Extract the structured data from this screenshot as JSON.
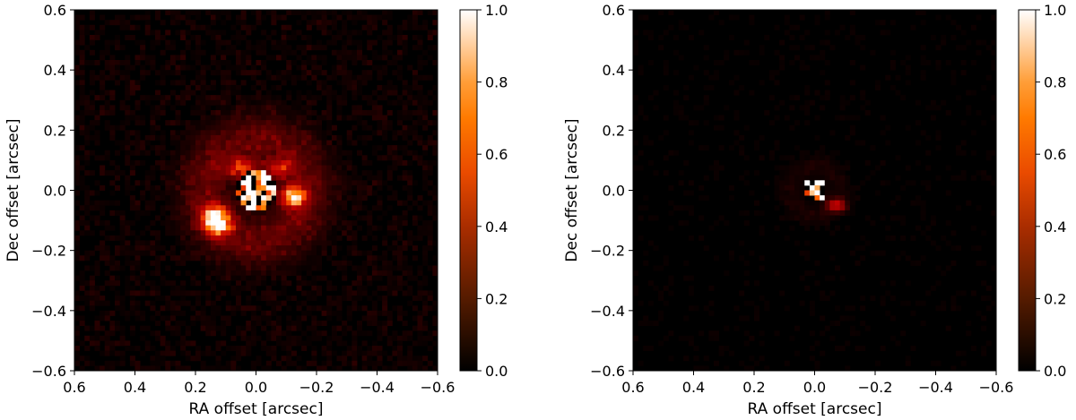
{
  "chart_data": [
    {
      "type": "heatmap",
      "title": "",
      "xlabel": "RA offset [arcsec]",
      "ylabel": "Dec offset [arcsec]",
      "xlim": [
        0.6,
        -0.6
      ],
      "ylim": [
        -0.6,
        0.6
      ],
      "x_inverted": true,
      "xticks": [
        "0.6",
        "0.4",
        "0.2",
        "0.0",
        "−0.2",
        "−0.4",
        "−0.6"
      ],
      "yticks": [
        "−0.6",
        "−0.4",
        "−0.2",
        "0.0",
        "0.2",
        "0.4",
        "0.6"
      ],
      "colorbar": {
        "range": [
          0.0,
          1.0
        ],
        "ticks": [
          "0.0",
          "0.2",
          "0.4",
          "0.6",
          "0.8",
          "1.0"
        ],
        "colormap": "gist_heat"
      },
      "grid": false,
      "features": {
        "mask_radius_arcsec": 0.065,
        "arcs": [
          {
            "ra_center": 0.13,
            "dec_center": -0.1,
            "ra_width": 0.05,
            "dec_width": 0.045,
            "tilt_deg": -50,
            "peak": 1.0
          },
          {
            "ra_center": -0.12,
            "dec_center": -0.02,
            "ra_width": 0.04,
            "dec_width": 0.035,
            "tilt_deg": 0,
            "peak": 0.95
          },
          {
            "ra_center": 0.04,
            "dec_center": 0.07,
            "ra_width": 0.06,
            "dec_width": 0.035,
            "tilt_deg": 0,
            "peak": 0.55
          },
          {
            "ra_center": -0.08,
            "dec_center": 0.07,
            "ra_width": 0.04,
            "dec_width": 0.03,
            "tilt_deg": 0,
            "peak": 0.5
          }
        ],
        "halo": {
          "radius_arcsec": 0.17,
          "width_arcsec": 0.08,
          "peak": 0.3
        },
        "background_noise": 0.12,
        "core_residuals": 1.0
      }
    },
    {
      "type": "heatmap",
      "title": "",
      "xlabel": "RA offset [arcsec]",
      "ylabel": "Dec offset [arcsec]",
      "xlim": [
        0.6,
        -0.6
      ],
      "ylim": [
        -0.6,
        0.6
      ],
      "x_inverted": true,
      "xticks": [
        "0.6",
        "0.4",
        "0.2",
        "0.0",
        "−0.2",
        "−0.4",
        "−0.6"
      ],
      "yticks": [
        "−0.6",
        "−0.4",
        "−0.2",
        "0.0",
        "0.2",
        "0.4",
        "0.6"
      ],
      "colorbar": {
        "range": [
          0.0,
          1.0
        ],
        "ticks": [
          "0.0",
          "0.2",
          "0.4",
          "0.6",
          "0.8",
          "1.0"
        ],
        "colormap": "gist_heat"
      },
      "grid": false,
      "features": {
        "mask_radius_arcsec": 0.04,
        "arcs": [
          {
            "ra_center": -0.07,
            "dec_center": -0.05,
            "ra_width": 0.03,
            "dec_width": 0.02,
            "tilt_deg": 0,
            "peak": 0.6
          }
        ],
        "halo": {
          "radius_arcsec": 0.08,
          "width_arcsec": 0.04,
          "peak": 0.06
        },
        "background_noise": 0.04,
        "core_residuals": 1.0
      }
    }
  ]
}
